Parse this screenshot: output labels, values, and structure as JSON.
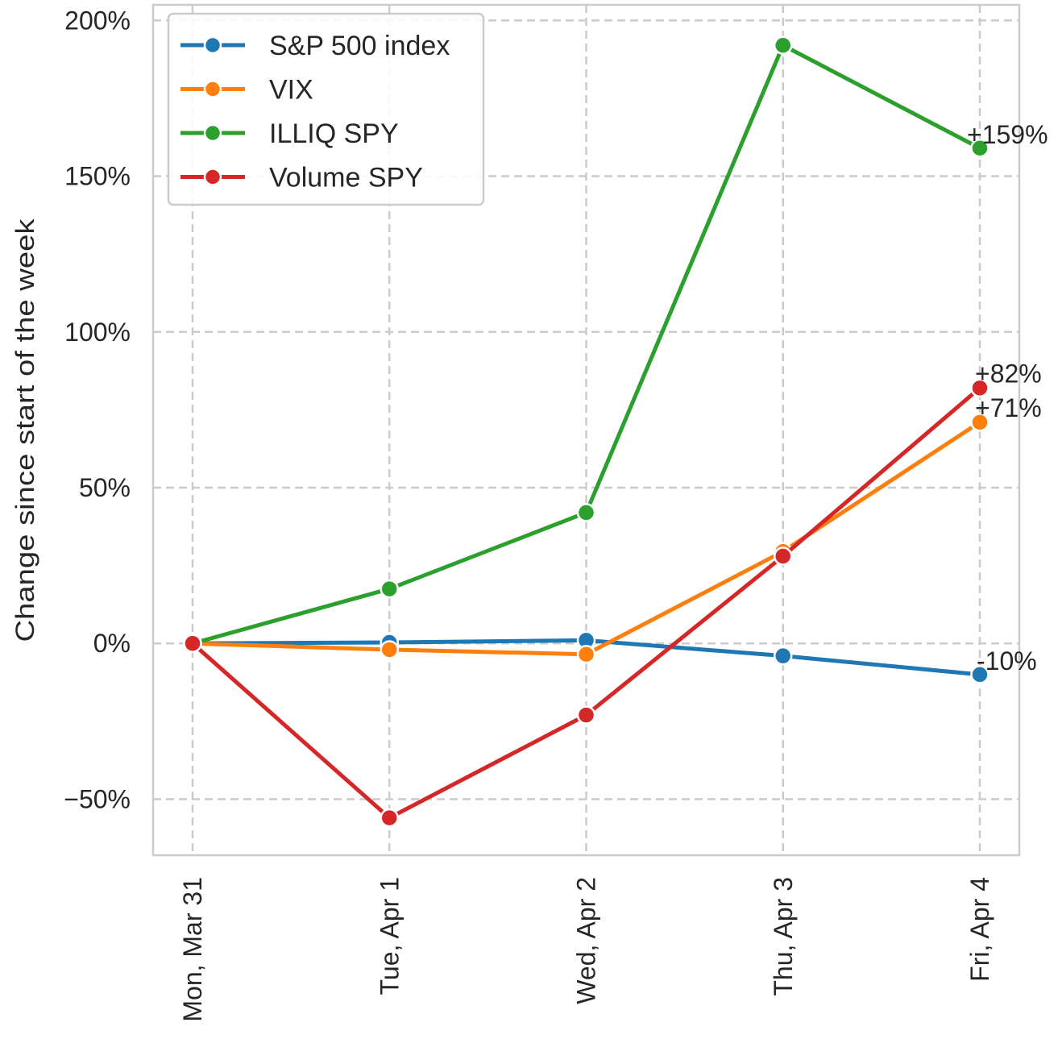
{
  "chart_data": {
    "type": "line",
    "title": "",
    "xlabel": "",
    "ylabel": "Change since start of the week",
    "categories": [
      "Mon, Mar 31",
      "Tue, Apr 1",
      "Wed, Apr 2",
      "Thu, Apr 3",
      "Fri, Apr 4"
    ],
    "ylim": [
      -68,
      205
    ],
    "yticks": [
      -50,
      0,
      50,
      100,
      150,
      200
    ],
    "ytick_labels": [
      "−50%",
      "0%",
      "50%",
      "100%",
      "150%",
      "200%"
    ],
    "grid": true,
    "grid_style": "dashed",
    "legend_position": "top-left",
    "series": [
      {
        "name": "S&P 500 index",
        "color": "#1f77b4",
        "values": [
          0,
          0.3,
          1,
          -4,
          -10
        ]
      },
      {
        "name": "VIX",
        "color": "#ff7f0e",
        "values": [
          0,
          -2,
          -3.5,
          29.5,
          71
        ]
      },
      {
        "name": "ILLIQ SPY",
        "color": "#2ca02c",
        "values": [
          0,
          17.5,
          42,
          192,
          159
        ]
      },
      {
        "name": "Volume SPY",
        "color": "#d62728",
        "values": [
          0,
          -56,
          -23,
          28,
          82
        ]
      }
    ],
    "annotations": [
      {
        "series": "ILLIQ SPY",
        "text": "+159%"
      },
      {
        "series": "Volume SPY",
        "text": "+82%"
      },
      {
        "series": "VIX",
        "text": "+71%"
      },
      {
        "series": "S&P 500 index",
        "text": "-10%"
      }
    ]
  }
}
